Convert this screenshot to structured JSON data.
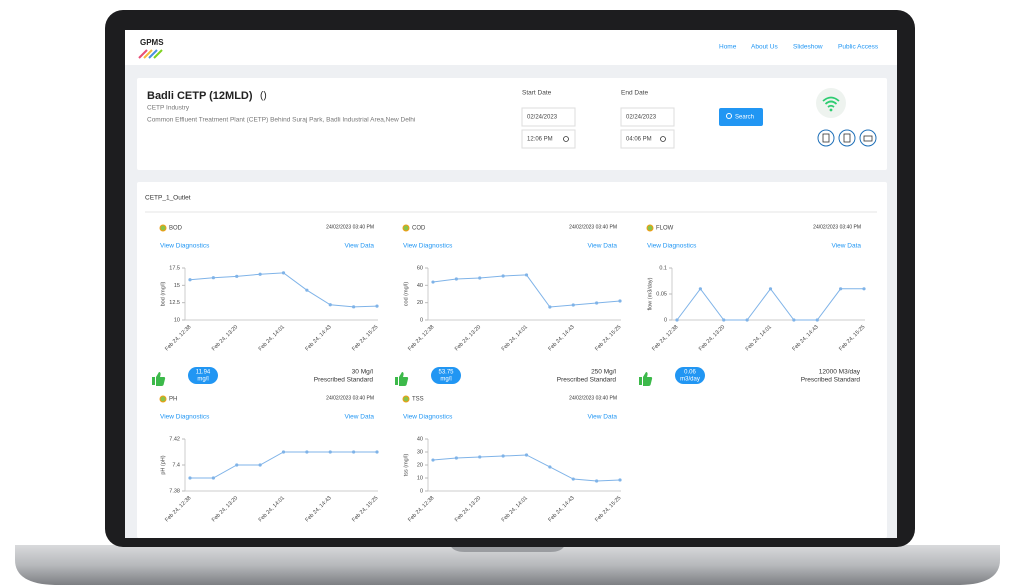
{
  "header": {
    "logo": "GPMS",
    "nav": [
      "Home",
      "About Us",
      "Slideshow",
      "Public Access"
    ]
  },
  "site": {
    "title": "Badli CETP (12MLD)",
    "suffix": "()",
    "industry": "CETP Industry",
    "address": "Common Effluent Treatment Plant (CETP) Behind Suraj Park, Badli Industrial Area,New Delhi"
  },
  "filters": {
    "start_label": "Start Date",
    "start_date": "02/24/2023",
    "start_time": "12:06 PM",
    "end_label": "End Date",
    "end_date": "02/24/2023",
    "end_time": "04:06 PM",
    "search": "Search"
  },
  "station": "CETP_1_Outlet",
  "panels": [
    {
      "name": "BOD",
      "timestamp": "24/02/2023 03:40 PM",
      "diagnostics": "View Diagnostics",
      "view_data": "View Data",
      "chart_data": {
        "type": "line",
        "y_label": "bod (mg/l)",
        "categories": [
          "Feb 24, 12:38",
          null,
          "Feb 24, 13:20",
          null,
          "Feb 24, 14:01",
          null,
          "Feb 24, 14:43",
          null,
          "Feb 24, 15:25"
        ],
        "values": [
          15.8,
          16.1,
          16.3,
          16.6,
          16.8,
          14.3,
          12.2,
          11.9,
          12.0
        ],
        "color": "#7fb3e8",
        "ylim": [
          10,
          17.5
        ],
        "yticks": [
          10,
          12.5,
          15,
          17.5
        ]
      },
      "reading": {
        "value": "11.94",
        "unit": "mg/l"
      },
      "standard": {
        "value": "30 Mg/l",
        "label": "Prescribed Standard"
      }
    },
    {
      "name": "COD",
      "timestamp": "24/02/2023 03:40 PM",
      "diagnostics": "View Diagnostics",
      "view_data": "View Data",
      "chart_data": {
        "type": "line",
        "y_label": "cod (mg/l)",
        "categories": [
          "Feb 24, 12:38",
          null,
          "Feb 24, 13:20",
          null,
          "Feb 24, 14:01",
          null,
          "Feb 24, 14:43",
          null,
          "Feb 24, 15:25"
        ],
        "values": [
          43.8,
          47.3,
          48.5,
          50.8,
          52,
          15,
          17.3,
          19.6,
          21.9
        ],
        "color": "#7fb3e8",
        "ylim": [
          0,
          60
        ],
        "yticks": [
          0,
          20,
          40,
          60
        ]
      },
      "reading": {
        "value": "53.75",
        "unit": "mg/l"
      },
      "standard": {
        "value": "250 Mg/l",
        "label": "Prescribed Standard"
      }
    },
    {
      "name": "FLOW",
      "timestamp": "24/02/2023 03:40 PM",
      "diagnostics": "View Diagnostics",
      "view_data": "View Data",
      "chart_data": {
        "type": "line",
        "y_label": "flow (m3/day)",
        "categories": [
          "Feb 24, 12:38",
          null,
          "Feb 24, 13:20",
          null,
          "Feb 24, 14:01",
          null,
          "Feb 24, 14:43",
          null,
          "Feb 24, 15:25"
        ],
        "values": [
          0,
          0.06,
          0,
          0,
          0.06,
          0,
          0,
          0.06,
          0.06
        ],
        "color": "#7fb3e8",
        "ylim": [
          0,
          0.1
        ],
        "yticks": [
          0,
          0.05,
          0.1
        ]
      },
      "reading": {
        "value": "0.06",
        "unit": "m3/day"
      },
      "standard": {
        "value": "12000 M3/day",
        "label": "Prescribed Standard"
      }
    },
    {
      "name": "PH",
      "timestamp": "24/02/2023 03:40 PM",
      "diagnostics": "View Diagnostics",
      "view_data": "View Data",
      "chart_data": {
        "type": "line",
        "y_label": "pH (pH)",
        "categories": [
          "Feb 24, 12:38",
          null,
          "Feb 24, 13:20",
          null,
          "Feb 24, 14:01",
          null,
          "Feb 24, 14:43",
          null,
          "Feb 24, 15:25"
        ],
        "values": [
          7.39,
          7.39,
          7.4,
          7.4,
          7.41,
          7.41,
          7.41,
          7.41,
          7.41
        ],
        "color": "#7fb3e8",
        "ylim": [
          7.38,
          7.42
        ],
        "yticks": [
          7.38,
          7.4,
          7.42
        ]
      }
    },
    {
      "name": "TSS",
      "timestamp": "24/02/2023 03:40 PM",
      "diagnostics": "View Diagnostics",
      "view_data": "View Data",
      "chart_data": {
        "type": "line",
        "y_label": "tss (mg/l)",
        "categories": [
          "Feb 24, 12:38",
          null,
          "Feb 24, 13:20",
          null,
          "Feb 24, 14:01",
          null,
          "Feb 24, 14:43",
          null,
          "Feb 24, 15:25"
        ],
        "values": [
          23.8,
          25.4,
          26.2,
          26.9,
          27.7,
          18.5,
          9.2,
          7.7,
          8.5
        ],
        "color": "#7fb3e8",
        "ylim": [
          0,
          40
        ],
        "yticks": [
          0,
          10,
          20,
          30,
          40
        ]
      }
    }
  ]
}
